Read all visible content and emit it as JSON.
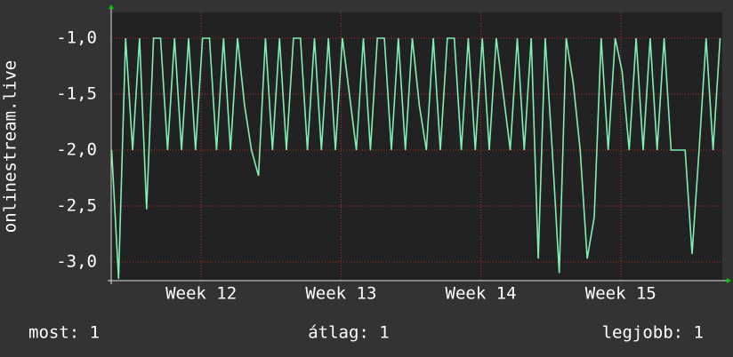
{
  "chart_data": {
    "type": "line",
    "y_label": "onlinestream.live",
    "x": [
      11.36,
      11.41,
      11.46,
      11.51,
      11.56,
      11.61,
      11.66,
      11.71,
      11.76,
      11.81,
      11.86,
      11.91,
      11.96,
      12.01,
      12.06,
      12.11,
      12.16,
      12.21,
      12.26,
      12.31,
      12.36,
      12.41,
      12.46,
      12.51,
      12.56,
      12.61,
      12.66,
      12.71,
      12.76,
      12.81,
      12.86,
      12.91,
      12.96,
      13.01,
      13.06,
      13.11,
      13.16,
      13.21,
      13.26,
      13.31,
      13.36,
      13.41,
      13.46,
      13.51,
      13.56,
      13.61,
      13.66,
      13.71,
      13.76,
      13.81,
      13.86,
      13.91,
      13.96,
      14.01,
      14.06,
      14.11,
      14.16,
      14.21,
      14.26,
      14.31,
      14.36,
      14.41,
      14.46,
      14.51,
      14.56,
      14.61,
      14.66,
      14.71,
      14.76,
      14.81,
      14.86,
      14.91,
      14.96,
      15.01,
      15.06,
      15.11,
      15.16,
      15.21,
      15.26,
      15.31,
      15.36,
      15.41,
      15.46,
      15.51,
      15.56,
      15.61,
      15.66,
      15.71
    ],
    "series": [
      {
        "color": "#80f0b0",
        "values": [
          -2,
          -3.15,
          -1,
          -2,
          -1,
          -2.53,
          -1,
          -1,
          -2,
          -1,
          -2,
          -1,
          -2,
          -1,
          -1,
          -2,
          -1,
          -2,
          -1,
          -1.6,
          -2,
          -2.23,
          -1,
          -2,
          -1,
          -2,
          -1,
          -1,
          -2,
          -1,
          -2,
          -1,
          -2,
          -1,
          -1.5,
          -2,
          -1,
          -2,
          -1,
          -1,
          -2,
          -1,
          -2,
          -1,
          -1.6,
          -2,
          -1,
          -2,
          -1,
          -1,
          -2,
          -1,
          -2,
          -1,
          -2,
          -1,
          -1.5,
          -2,
          -1,
          -2,
          -1,
          -2.97,
          -1,
          -2,
          -3.1,
          -1,
          -1.4,
          -2,
          -2.97,
          -2.6,
          -1,
          -2,
          -1,
          -1.3,
          -2,
          -1,
          -2,
          -1,
          -2,
          -1,
          -2,
          -2,
          -2,
          -2.93,
          -2,
          -1,
          -2,
          -1
        ]
      }
    ],
    "xlim": [
      11.357,
      15.726
    ],
    "xticks": [
      {
        "value": 12,
        "label": "Week 12"
      },
      {
        "value": 13,
        "label": "Week 13"
      },
      {
        "value": 14,
        "label": "Week 14"
      },
      {
        "value": 15,
        "label": "Week 15"
      }
    ],
    "ylim": [
      -3.167,
      -0.77
    ],
    "yticks": [
      {
        "value": -1,
        "label": "-1,0"
      },
      {
        "value": -1.5,
        "label": "-1,5"
      },
      {
        "value": -2,
        "label": "-2,0"
      },
      {
        "value": -2.5,
        "label": "-2,5"
      },
      {
        "value": -3,
        "label": "-3,0"
      }
    ],
    "grid": true,
    "grid_color": "#b03030",
    "footer": [
      "most: 1",
      "átlag: 1",
      "legjobb: 1"
    ]
  }
}
